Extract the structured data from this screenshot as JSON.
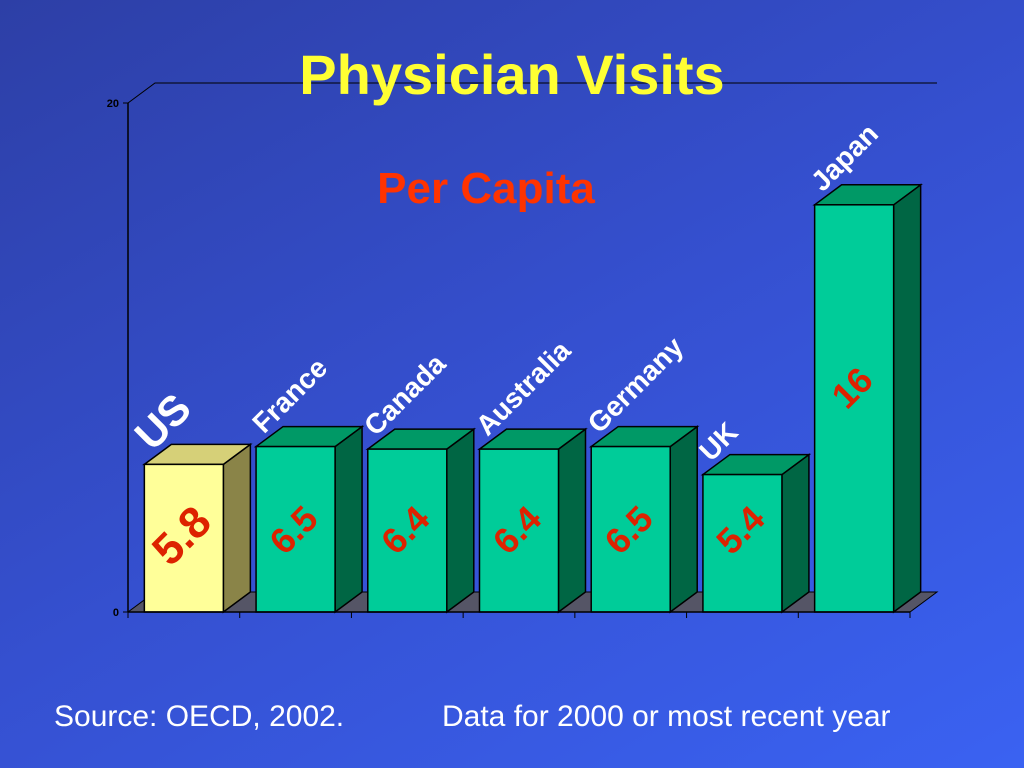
{
  "colors": {
    "title": "#ffff33",
    "subtitle": "#ff3300",
    "value_label": "#dd2200",
    "category_label": "#ffffff",
    "highlight_front": "#ffff99",
    "highlight_top": "#d6d078",
    "highlight_side": "#8a8448",
    "bar_front": "#00cc99",
    "bar_top": "#009966",
    "bar_side": "#006644",
    "floor": "#555566",
    "axis": "#000000"
  },
  "footer": {
    "source": "Source: OECD, 2002.",
    "note": "Data for 2000 or most recent year"
  },
  "chart_data": {
    "type": "bar",
    "title": "Physician Visits",
    "subtitle": "Per Capita",
    "categories": [
      "US",
      "France",
      "Canada",
      "Australia",
      "Germany",
      "UK",
      "Japan"
    ],
    "values": [
      5.8,
      6.5,
      6.4,
      6.4,
      6.5,
      5.4,
      16
    ],
    "value_labels": [
      "5.8",
      "6.5",
      "6.4",
      "6.4",
      "6.5",
      "5.4",
      "16"
    ],
    "highlight": "US",
    "ylim": [
      0,
      20
    ],
    "yticks": [
      "0",
      "20"
    ],
    "grid": false,
    "style": "3d"
  }
}
